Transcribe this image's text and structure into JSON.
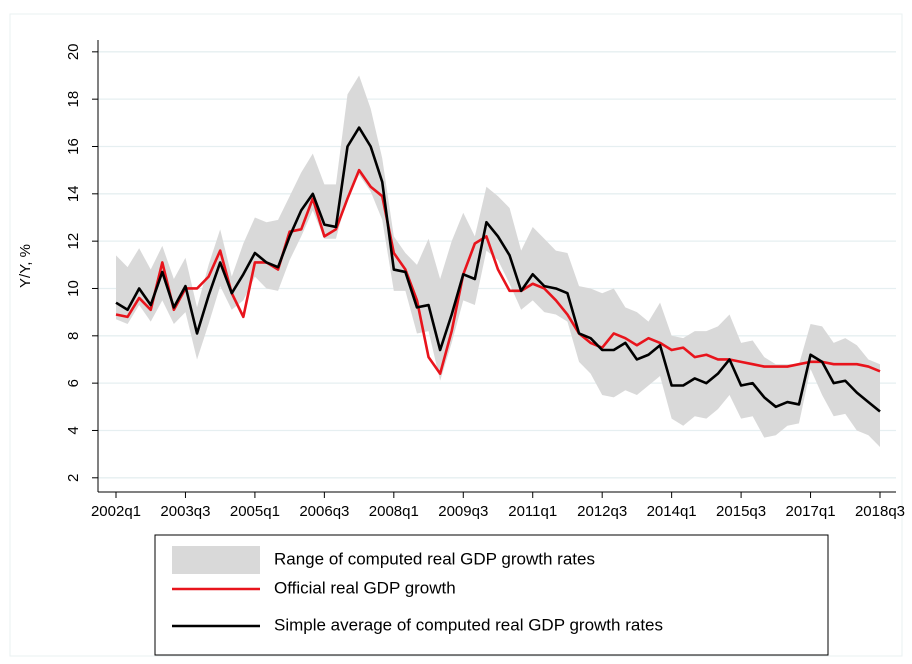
{
  "chart_data": {
    "type": "line",
    "y_label": "Y/Y, %",
    "categories": [
      "2002q1",
      null,
      null,
      null,
      null,
      null,
      "2003q3",
      null,
      null,
      null,
      null,
      null,
      "2005q1",
      null,
      null,
      null,
      null,
      null,
      "2006q3",
      null,
      null,
      null,
      null,
      null,
      "2008q1",
      null,
      null,
      null,
      null,
      null,
      "2009q3",
      null,
      null,
      null,
      null,
      null,
      "2011q1",
      null,
      null,
      null,
      null,
      null,
      "2012q3",
      null,
      null,
      null,
      null,
      null,
      "2014q1",
      null,
      null,
      null,
      null,
      null,
      "2015q3",
      null,
      null,
      null,
      null,
      null,
      "2017q1",
      null,
      null,
      null,
      null,
      null,
      "2018q3"
    ],
    "ylim": [
      1.4,
      20.5
    ],
    "yticks": [
      2,
      4,
      6,
      8,
      10,
      12,
      14,
      16,
      18,
      20
    ],
    "grid": true,
    "legend": "bottom",
    "series": [
      {
        "name": "Range of computed real GDP growth rates",
        "color": "#d9d9d9",
        "low": [
          8.7,
          8.5,
          9.3,
          8.6,
          9.5,
          8.5,
          9.0,
          7.0,
          8.5,
          10.1,
          9.1,
          9.5,
          10.5,
          10.0,
          9.9,
          11.2,
          12.2,
          13.3,
          12.1,
          12.1,
          13.9,
          14.8,
          14.1,
          12.9,
          9.9,
          9.9,
          8.1,
          8.2,
          6.1,
          7.7,
          9.5,
          9.3,
          11.6,
          11.2,
          10.2,
          9.1,
          9.5,
          9.0,
          8.9,
          8.6,
          6.9,
          6.4,
          5.5,
          5.4,
          5.7,
          5.5,
          5.9,
          6.3,
          4.5,
          4.2,
          4.6,
          4.5,
          4.9,
          5.5,
          4.5,
          4.6,
          3.7,
          3.8,
          4.2,
          4.3,
          6.6,
          5.5,
          4.6,
          4.7,
          4.0,
          3.8,
          3.3
        ],
        "high": [
          11.4,
          10.9,
          11.7,
          10.8,
          11.8,
          10.4,
          11.3,
          9.2,
          11.0,
          12.5,
          10.5,
          11.9,
          13.0,
          12.8,
          12.9,
          13.9,
          14.9,
          15.7,
          14.4,
          14.4,
          18.2,
          19.0,
          17.6,
          15.5,
          12.2,
          11.5,
          11.0,
          12.1,
          10.4,
          12.0,
          13.2,
          12.2,
          14.3,
          13.9,
          13.4,
          11.6,
          12.6,
          12.1,
          11.6,
          11.5,
          10.1,
          10.0,
          9.8,
          10.0,
          9.2,
          9.0,
          8.6,
          9.4,
          8.0,
          7.9,
          8.2,
          8.2,
          8.4,
          8.9,
          7.7,
          7.8,
          7.1,
          6.8,
          6.8,
          6.8,
          8.5,
          8.4,
          7.7,
          7.9,
          7.6,
          7.0,
          6.8
        ]
      },
      {
        "name": "Official real GDP growth",
        "color": "#e8141c",
        "values": [
          8.9,
          8.8,
          9.6,
          9.1,
          11.1,
          9.1,
          10.0,
          10.0,
          10.5,
          11.6,
          9.8,
          8.8,
          11.1,
          11.1,
          10.8,
          12.4,
          12.5,
          13.8,
          12.2,
          12.5,
          13.8,
          15.0,
          14.3,
          13.9,
          11.5,
          10.8,
          9.5,
          7.1,
          6.4,
          8.2,
          10.6,
          11.9,
          12.2,
          10.8,
          9.9,
          9.9,
          10.2,
          10.0,
          9.5,
          8.9,
          8.1,
          7.7,
          7.5,
          8.1,
          7.9,
          7.6,
          7.9,
          7.7,
          7.4,
          7.5,
          7.1,
          7.2,
          7.0,
          7.0,
          6.9,
          6.8,
          6.7,
          6.7,
          6.7,
          6.8,
          6.9,
          6.9,
          6.8,
          6.8,
          6.8,
          6.7,
          6.5
        ]
      },
      {
        "name": "Simple average of computed real GDP growth rates",
        "color": "#000000",
        "values": [
          9.4,
          9.1,
          10.0,
          9.3,
          10.7,
          9.2,
          10.1,
          8.1,
          9.7,
          11.1,
          9.8,
          10.6,
          11.5,
          11.1,
          10.9,
          12.2,
          13.3,
          14.0,
          12.7,
          12.6,
          16.0,
          16.8,
          16.0,
          14.5,
          10.8,
          10.7,
          9.2,
          9.3,
          7.4,
          8.9,
          10.6,
          10.4,
          12.8,
          12.2,
          11.4,
          9.9,
          10.6,
          10.1,
          10.0,
          9.8,
          8.1,
          7.9,
          7.4,
          7.4,
          7.7,
          7.0,
          7.2,
          7.6,
          5.9,
          5.9,
          6.2,
          6.0,
          6.4,
          7.0,
          5.9,
          6.0,
          5.4,
          5.0,
          5.2,
          5.1,
          7.2,
          6.9,
          6.0,
          6.1,
          5.6,
          5.2,
          4.8
        ]
      }
    ]
  }
}
